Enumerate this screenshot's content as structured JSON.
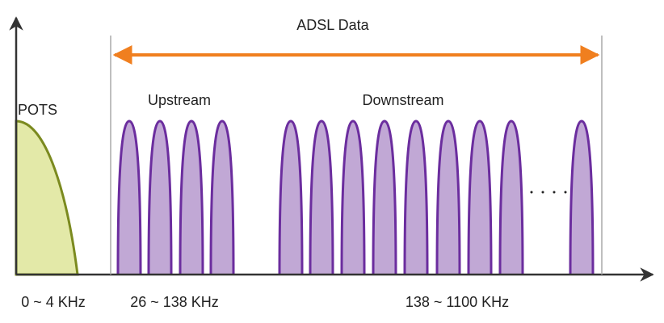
{
  "title": "ADSL Data",
  "labels": {
    "pots": "POTS",
    "upstream": "Upstream",
    "downstream": "Downstream"
  },
  "ranges": {
    "pots": "0 ~ 4 KHz",
    "upstream": "26 ~ 138 KHz",
    "downstream": "138 ~ 1100 KHz"
  }
}
